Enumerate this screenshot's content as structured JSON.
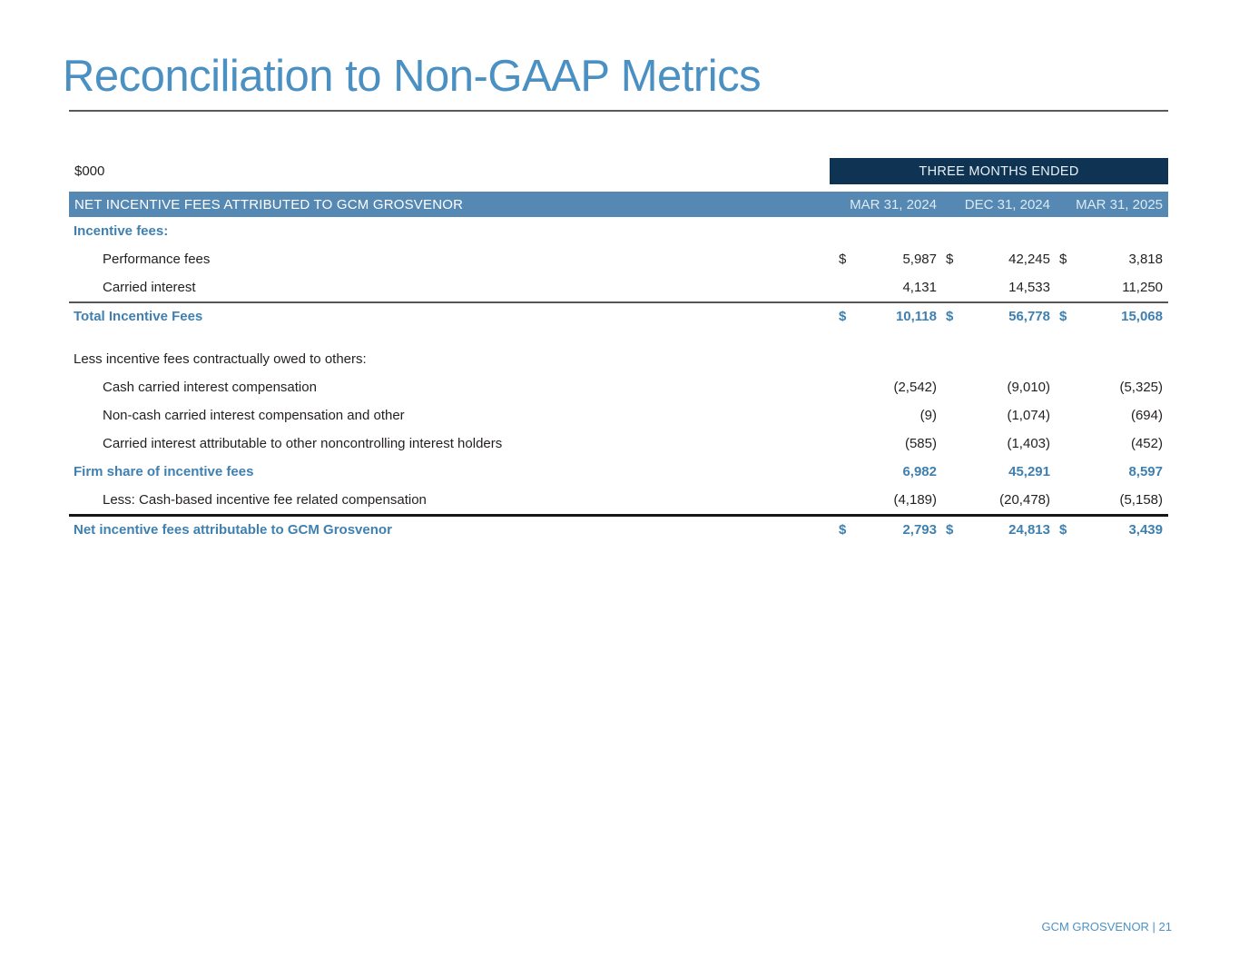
{
  "page": {
    "title": "Reconciliation to Non-GAAP Metrics",
    "units_label": "$000",
    "footer": "GCM GROSVENOR | 21"
  },
  "colors": {
    "title_blue": "#4A90C2",
    "band_blue": "#5589B3",
    "navy": "#0F3453",
    "bold_blue": "#3F80B0",
    "body_text": "#231F20",
    "rule_gray": "#58595B",
    "footer_blue": "#4D92C4"
  },
  "table": {
    "group_header": "THREE MONTHS ENDED",
    "row_header": "NET INCENTIVE FEES ATTRIBUTED TO GCM GROSVENOR",
    "periods": [
      "MAR 31, 2024",
      "DEC 31, 2024",
      "MAR 31, 2025"
    ],
    "rows": [
      {
        "label": "Incentive fees:",
        "style": "section",
        "indent": 0,
        "dollar": false,
        "values": [
          "",
          "",
          ""
        ]
      },
      {
        "label": "Performance fees",
        "style": "item",
        "indent": 1,
        "dollar": true,
        "values": [
          "5,987",
          "42,245",
          "3,818"
        ]
      },
      {
        "label": "Carried interest",
        "style": "item",
        "indent": 1,
        "dollar": false,
        "values": [
          "4,131",
          "14,533",
          "11,250"
        ]
      },
      {
        "label": "Total Incentive Fees",
        "style": "total",
        "indent": 0,
        "dollar": true,
        "values": [
          "10,118",
          "56,778",
          "15,068"
        ],
        "border_top": "thin"
      },
      {
        "label": "",
        "style": "spacer",
        "indent": 0,
        "dollar": false,
        "values": [
          "",
          "",
          ""
        ]
      },
      {
        "label": "Less incentive fees contractually owed to others:",
        "style": "plain",
        "indent": 0,
        "dollar": false,
        "values": [
          "",
          "",
          ""
        ]
      },
      {
        "label": "Cash carried interest compensation",
        "style": "item",
        "indent": 1,
        "dollar": false,
        "values": [
          "(2,542)",
          "(9,010)",
          "(5,325)"
        ]
      },
      {
        "label": "Non-cash carried interest compensation and other",
        "style": "item",
        "indent": 1,
        "dollar": false,
        "values": [
          "(9)",
          "(1,074)",
          "(694)"
        ]
      },
      {
        "label": "Carried interest attributable to other noncontrolling interest holders",
        "style": "item",
        "indent": 1,
        "dollar": false,
        "values": [
          "(585)",
          "(1,403)",
          "(452)"
        ]
      },
      {
        "label": "Firm share of incentive fees",
        "style": "total",
        "indent": 0,
        "dollar": false,
        "values": [
          "6,982",
          "45,291",
          "8,597"
        ]
      },
      {
        "label": "Less: Cash-based incentive fee related compensation",
        "style": "item",
        "indent": 1,
        "dollar": false,
        "values": [
          "(4,189)",
          "(20,478)",
          "(5,158)"
        ]
      },
      {
        "label": "Net incentive fees attributable to GCM Grosvenor",
        "style": "total",
        "indent": 0,
        "dollar": true,
        "values": [
          "2,793",
          "24,813",
          "3,439"
        ],
        "border_top": "thick"
      }
    ]
  }
}
